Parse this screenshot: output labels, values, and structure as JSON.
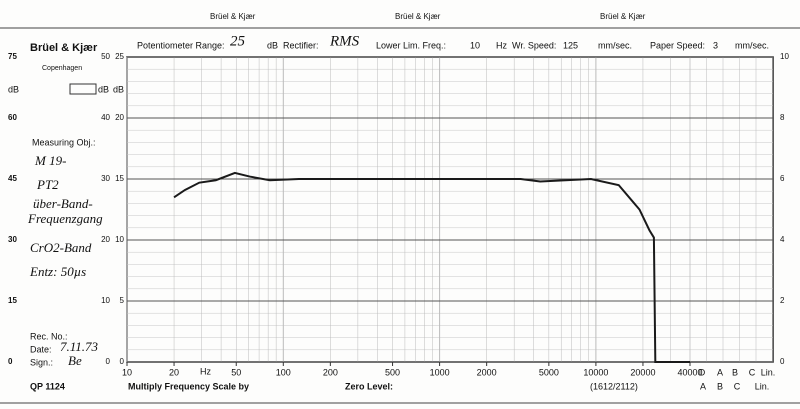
{
  "top_strip": [
    "Brüel & Kjær",
    "Brüel & Kjær",
    "Brüel & Kjær"
  ],
  "brand": "Brüel & Kjær",
  "city": "Copenhagen",
  "header": [
    "Potentiometer Range:",
    "25",
    "dB",
    "Rectifier:",
    "RMS",
    "Lower Lim. Freq.:",
    "10",
    "Hz",
    "Wr. Speed:",
    "125",
    "mm/sec.",
    "Paper Speed:",
    "3",
    "mm/sec."
  ],
  "left_panel": {
    "label": "Measuring Obj.:",
    "notes": [
      "M 19-",
      "PT2",
      "über-Band-",
      "Frequenzgang",
      "CrO2-Band",
      "Entz: 50µs"
    ],
    "rec_no": "Rec. No.:",
    "date_label": "Date:",
    "date": "7.11.73",
    "sign_label": "Sign.:",
    "sign": "Be"
  },
  "footer": {
    "code": "QP 1124",
    "multiply": "Multiply Frequency Scale by",
    "zero_level": "Zero Level:",
    "ref": "(1612/2112)",
    "weighting_top": [
      "D",
      "A",
      "B",
      "C",
      "Lin."
    ],
    "weighting_bottom": [
      "A",
      "B",
      "C",
      "Lin."
    ]
  },
  "chart_data": {
    "type": "line",
    "x_unit": "Hz",
    "y_unit": "dB",
    "xscale": "log",
    "xlim": [
      10,
      40000
    ],
    "xticks": [
      10,
      20,
      50,
      100,
      200,
      500,
      1000,
      2000,
      5000,
      10000,
      20000,
      40000
    ],
    "ylim": [
      0,
      25
    ],
    "yticks": [
      0,
      5,
      10,
      15,
      20,
      25
    ],
    "left_scale_lim": [
      0,
      75
    ],
    "left_scale_ticks": [
      0,
      15,
      30,
      45,
      60,
      75
    ],
    "inner_scale_lim": [
      0,
      50
    ],
    "inner_scale_ticks": [
      0,
      10,
      20,
      30,
      40,
      50
    ],
    "right_scale_lim": [
      0,
      10
    ],
    "right_scale_ticks": [
      0,
      2,
      4,
      6,
      8,
      10
    ],
    "grid": true,
    "series": [
      {
        "color": "#1a1a1a",
        "x": [
          20,
          23.5,
          29,
          37,
          49,
          61,
          82,
          126,
          300,
          1000,
          3300,
          4400,
          9300,
          14000,
          19000,
          22000,
          23500,
          24000,
          40000
        ],
        "values": [
          13.5,
          14.1,
          14.7,
          14.9,
          15.5,
          15.2,
          14.9,
          15.0,
          15.0,
          15.0,
          15.0,
          14.8,
          15.0,
          14.5,
          12.5,
          10.8,
          10.2,
          0,
          0
        ]
      }
    ]
  }
}
